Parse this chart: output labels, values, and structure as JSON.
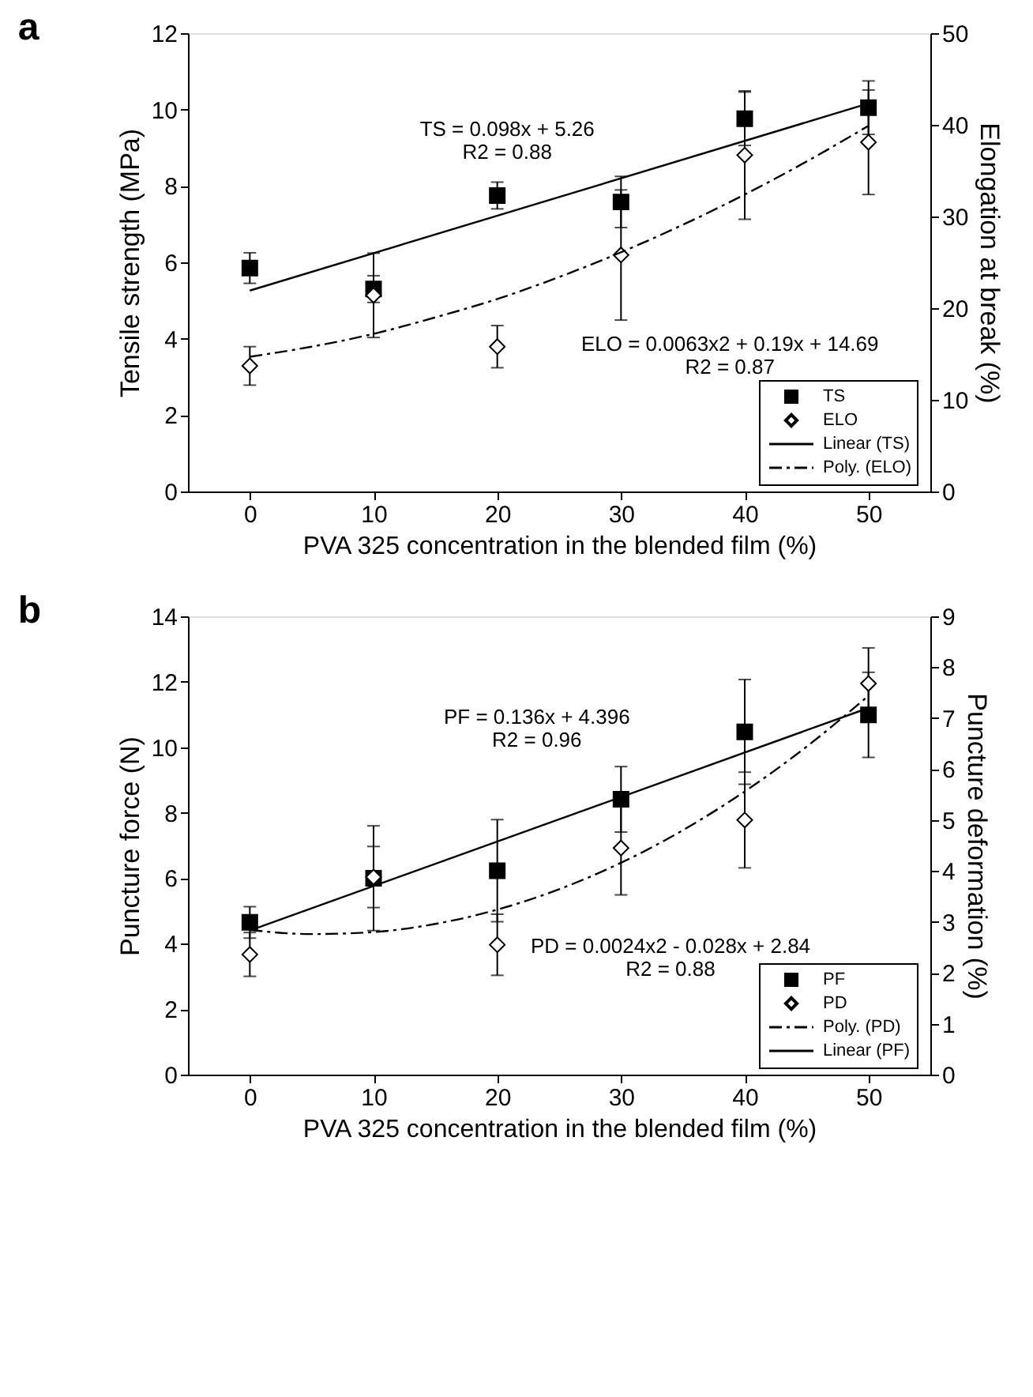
{
  "chart_data": [
    {
      "type": "scatter",
      "title": "a",
      "xlabel": "PVA 325 concentration in the blended film (%)",
      "ylabel": "Tensile strength (MPa)",
      "y2label": "Elongation at break (%)",
      "xlim": [
        -5,
        55
      ],
      "xticks": [
        0,
        10,
        20,
        30,
        40,
        50
      ],
      "ylim": [
        0,
        12
      ],
      "yticks": [
        0,
        2,
        4,
        6,
        8,
        10,
        12
      ],
      "y2lim": [
        0,
        50
      ],
      "y2ticks": [
        0,
        10,
        20,
        30,
        40,
        50
      ],
      "legend": "bottom right",
      "annotations": [
        "TS = 0.098x + 5.26",
        "R2 = 0.88",
        "ELO = 0.0063x2 + 0.19x + 14.69",
        "R2 = 0.87"
      ],
      "series": [
        {
          "name": "TS",
          "marker": "square",
          "color": "#000000",
          "x": [
            0,
            10,
            20,
            30,
            40,
            50
          ],
          "values": [
            5.85,
            5.3,
            7.75,
            7.58,
            9.76,
            10.05
          ],
          "errors": [
            0.4,
            0.35,
            0.35,
            0.67,
            0.7,
            0.7
          ]
        },
        {
          "name": "ELO",
          "marker": "diamond",
          "axis": "y2",
          "color": "#000000",
          "x": [
            0,
            10,
            20,
            30,
            40,
            50
          ],
          "values": [
            13.7,
            21.4,
            15.8,
            25.8,
            36.7,
            38.1
          ],
          "errors": [
            2.1,
            4.6,
            2.3,
            7.1,
            7.0,
            5.7
          ]
        },
        {
          "name": "Linear (TS)",
          "type": "line",
          "line_style": "solid",
          "color": "#000000",
          "x": [
            0,
            50
          ],
          "values": [
            5.26,
            10.16
          ]
        },
        {
          "name": "Poly. (ELO)",
          "type": "line",
          "line_style": "dashed",
          "axis": "y2",
          "color": "#000000",
          "x": [
            0,
            5,
            10,
            15,
            20,
            25,
            30,
            35,
            40,
            45,
            50
          ],
          "values": [
            14.7,
            15.8,
            17.2,
            19.0,
            21.0,
            23.4,
            26.1,
            29.1,
            32.4,
            36.0,
            39.9
          ]
        }
      ]
    },
    {
      "type": "scatter",
      "title": "b",
      "xlabel": "PVA 325 concentration in the blended film (%)",
      "ylabel": "Puncture force (N)",
      "y2label": "Puncture deformation (%)",
      "xlim": [
        -5,
        55
      ],
      "xticks": [
        0,
        10,
        20,
        30,
        40,
        50
      ],
      "ylim": [
        0,
        14
      ],
      "yticks": [
        0,
        2,
        4,
        6,
        8,
        10,
        12,
        14
      ],
      "y2lim": [
        0,
        9
      ],
      "y2ticks": [
        0,
        1,
        2,
        3,
        4,
        5,
        6,
        7,
        8,
        9
      ],
      "legend": "bottom right",
      "annotations": [
        "PF = 0.136x + 4.396",
        "R2 = 0.96",
        "PD = 0.0024x2 - 0.028x + 2.84",
        "R2 = 0.88"
      ],
      "series": [
        {
          "name": "PF",
          "marker": "square",
          "color": "#000000",
          "x": [
            0,
            10,
            20,
            30,
            40,
            50
          ],
          "values": [
            4.65,
            6.0,
            6.23,
            8.41,
            10.47,
            10.99
          ],
          "errors": [
            0.48,
            1.6,
            1.56,
            1.0,
            1.6,
            1.3
          ]
        },
        {
          "name": "PD",
          "marker": "diamond",
          "axis": "y2",
          "color": "#000000",
          "x": [
            0,
            10,
            20,
            30,
            40,
            50
          ],
          "values": [
            2.36,
            3.88,
            2.55,
            4.45,
            5.0,
            7.68
          ],
          "errors": [
            0.43,
            0.6,
            0.6,
            0.92,
            0.94,
            0.7
          ]
        },
        {
          "name": "Poly. (PD)",
          "type": "line",
          "line_style": "dashed",
          "axis": "y2",
          "color": "#000000",
          "x": [
            0,
            5,
            10,
            15,
            20,
            25,
            30,
            35,
            40,
            45,
            50
          ],
          "values": [
            2.84,
            2.76,
            2.8,
            2.96,
            3.24,
            3.64,
            4.16,
            4.8,
            5.56,
            6.44,
            7.44
          ]
        },
        {
          "name": "Linear (PF)",
          "type": "line",
          "line_style": "solid",
          "color": "#000000",
          "x": [
            0,
            50
          ],
          "values": [
            4.4,
            11.2
          ]
        }
      ]
    }
  ]
}
